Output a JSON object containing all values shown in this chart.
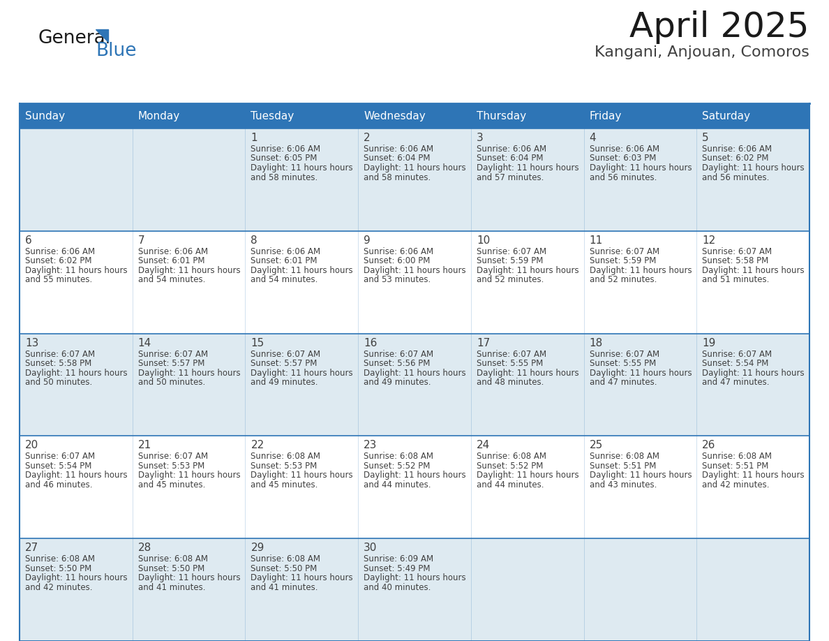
{
  "title": "April 2025",
  "subtitle": "Kangani, Anjouan, Comoros",
  "header_bg_color": "#2E75B6",
  "header_text_color": "#FFFFFF",
  "odd_row_bg": "#DEEAF1",
  "even_row_bg": "#FFFFFF",
  "border_color": "#2E75B6",
  "text_color": "#404040",
  "day_headers": [
    "Sunday",
    "Monday",
    "Tuesday",
    "Wednesday",
    "Thursday",
    "Friday",
    "Saturday"
  ],
  "calendar_data": [
    [
      {
        "day": null,
        "sunrise": null,
        "sunset": null,
        "daylight": null
      },
      {
        "day": null,
        "sunrise": null,
        "sunset": null,
        "daylight": null
      },
      {
        "day": 1,
        "sunrise": "6:06 AM",
        "sunset": "6:05 PM",
        "daylight": "11 hours and 58 minutes."
      },
      {
        "day": 2,
        "sunrise": "6:06 AM",
        "sunset": "6:04 PM",
        "daylight": "11 hours and 58 minutes."
      },
      {
        "day": 3,
        "sunrise": "6:06 AM",
        "sunset": "6:04 PM",
        "daylight": "11 hours and 57 minutes."
      },
      {
        "day": 4,
        "sunrise": "6:06 AM",
        "sunset": "6:03 PM",
        "daylight": "11 hours and 56 minutes."
      },
      {
        "day": 5,
        "sunrise": "6:06 AM",
        "sunset": "6:02 PM",
        "daylight": "11 hours and 56 minutes."
      }
    ],
    [
      {
        "day": 6,
        "sunrise": "6:06 AM",
        "sunset": "6:02 PM",
        "daylight": "11 hours and 55 minutes."
      },
      {
        "day": 7,
        "sunrise": "6:06 AM",
        "sunset": "6:01 PM",
        "daylight": "11 hours and 54 minutes."
      },
      {
        "day": 8,
        "sunrise": "6:06 AM",
        "sunset": "6:01 PM",
        "daylight": "11 hours and 54 minutes."
      },
      {
        "day": 9,
        "sunrise": "6:06 AM",
        "sunset": "6:00 PM",
        "daylight": "11 hours and 53 minutes."
      },
      {
        "day": 10,
        "sunrise": "6:07 AM",
        "sunset": "5:59 PM",
        "daylight": "11 hours and 52 minutes."
      },
      {
        "day": 11,
        "sunrise": "6:07 AM",
        "sunset": "5:59 PM",
        "daylight": "11 hours and 52 minutes."
      },
      {
        "day": 12,
        "sunrise": "6:07 AM",
        "sunset": "5:58 PM",
        "daylight": "11 hours and 51 minutes."
      }
    ],
    [
      {
        "day": 13,
        "sunrise": "6:07 AM",
        "sunset": "5:58 PM",
        "daylight": "11 hours and 50 minutes."
      },
      {
        "day": 14,
        "sunrise": "6:07 AM",
        "sunset": "5:57 PM",
        "daylight": "11 hours and 50 minutes."
      },
      {
        "day": 15,
        "sunrise": "6:07 AM",
        "sunset": "5:57 PM",
        "daylight": "11 hours and 49 minutes."
      },
      {
        "day": 16,
        "sunrise": "6:07 AM",
        "sunset": "5:56 PM",
        "daylight": "11 hours and 49 minutes."
      },
      {
        "day": 17,
        "sunrise": "6:07 AM",
        "sunset": "5:55 PM",
        "daylight": "11 hours and 48 minutes."
      },
      {
        "day": 18,
        "sunrise": "6:07 AM",
        "sunset": "5:55 PM",
        "daylight": "11 hours and 47 minutes."
      },
      {
        "day": 19,
        "sunrise": "6:07 AM",
        "sunset": "5:54 PM",
        "daylight": "11 hours and 47 minutes."
      }
    ],
    [
      {
        "day": 20,
        "sunrise": "6:07 AM",
        "sunset": "5:54 PM",
        "daylight": "11 hours and 46 minutes."
      },
      {
        "day": 21,
        "sunrise": "6:07 AM",
        "sunset": "5:53 PM",
        "daylight": "11 hours and 45 minutes."
      },
      {
        "day": 22,
        "sunrise": "6:08 AM",
        "sunset": "5:53 PM",
        "daylight": "11 hours and 45 minutes."
      },
      {
        "day": 23,
        "sunrise": "6:08 AM",
        "sunset": "5:52 PM",
        "daylight": "11 hours and 44 minutes."
      },
      {
        "day": 24,
        "sunrise": "6:08 AM",
        "sunset": "5:52 PM",
        "daylight": "11 hours and 44 minutes."
      },
      {
        "day": 25,
        "sunrise": "6:08 AM",
        "sunset": "5:51 PM",
        "daylight": "11 hours and 43 minutes."
      },
      {
        "day": 26,
        "sunrise": "6:08 AM",
        "sunset": "5:51 PM",
        "daylight": "11 hours and 42 minutes."
      }
    ],
    [
      {
        "day": 27,
        "sunrise": "6:08 AM",
        "sunset": "5:50 PM",
        "daylight": "11 hours and 42 minutes."
      },
      {
        "day": 28,
        "sunrise": "6:08 AM",
        "sunset": "5:50 PM",
        "daylight": "11 hours and 41 minutes."
      },
      {
        "day": 29,
        "sunrise": "6:08 AM",
        "sunset": "5:50 PM",
        "daylight": "11 hours and 41 minutes."
      },
      {
        "day": 30,
        "sunrise": "6:09 AM",
        "sunset": "5:49 PM",
        "daylight": "11 hours and 40 minutes."
      },
      {
        "day": null,
        "sunrise": null,
        "sunset": null,
        "daylight": null
      },
      {
        "day": null,
        "sunrise": null,
        "sunset": null,
        "daylight": null
      },
      {
        "day": null,
        "sunrise": null,
        "sunset": null,
        "daylight": null
      }
    ]
  ],
  "logo_color_general": "#1a1a1a",
  "logo_color_blue": "#2E75B6",
  "logo_triangle_color": "#2E75B6"
}
